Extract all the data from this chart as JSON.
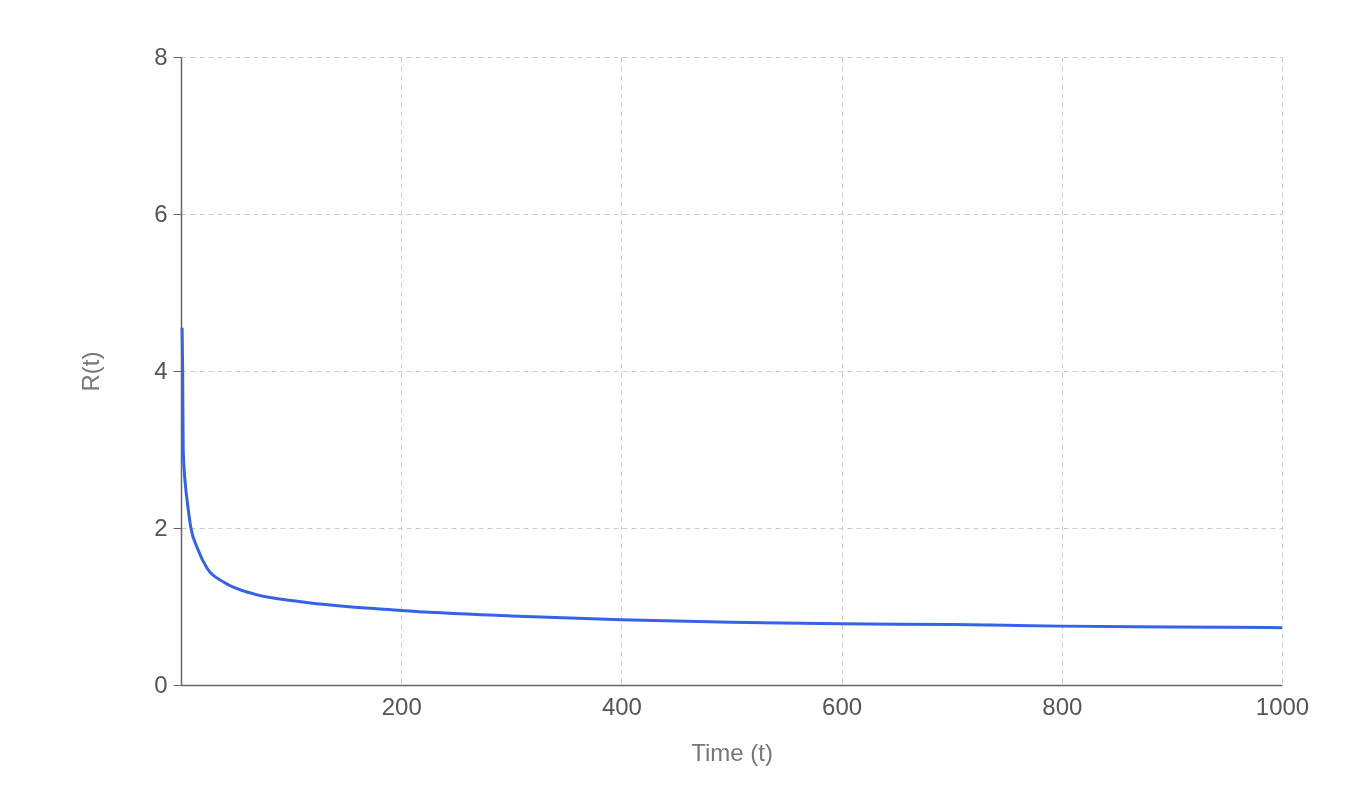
{
  "chart_data": {
    "type": "line",
    "xlabel": "Time (t)",
    "ylabel": "R(t)",
    "x": [
      1,
      1.5,
      2,
      4,
      6,
      9,
      15,
      24,
      39,
      66,
      109,
      200,
      300,
      400,
      500,
      600,
      700,
      800,
      900,
      1000
    ],
    "series": [
      {
        "color": "#3463e8",
        "values": [
          4.55,
          4.0,
          3.0,
          2.55,
          2.3,
          2.0,
          1.74,
          1.48,
          1.31,
          1.16,
          1.06,
          0.95,
          0.88,
          0.83,
          0.8,
          0.78,
          0.77,
          0.75,
          0.74,
          0.73
        ]
      }
    ],
    "xlim": [
      0,
      1000
    ],
    "xticks": [
      200,
      400,
      600,
      800,
      1000
    ],
    "ylim": [
      0,
      8
    ],
    "yticks": [
      0,
      2,
      4,
      6,
      8
    ],
    "grid": true,
    "legend": false,
    "marker": "none",
    "line_style": "solid"
  }
}
